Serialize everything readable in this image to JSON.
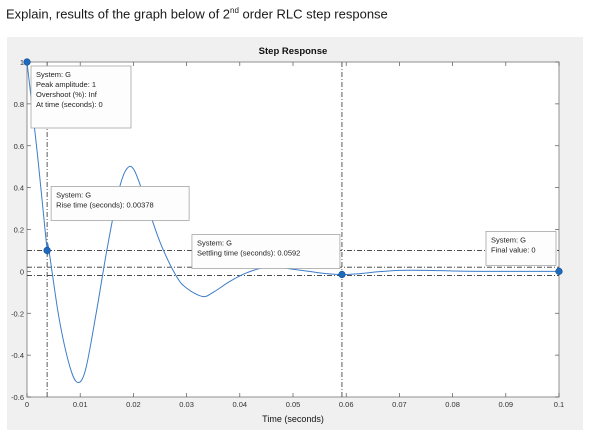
{
  "question": {
    "prefix": "Explain, results of the graph below of 2",
    "superscript": "nd",
    "suffix": " order RLC step response"
  },
  "colors": {
    "response": "#3c7dc9",
    "markers": "#1e6bbd",
    "guides": "#333333",
    "figure_bg": "#f0f0f0",
    "axes_bg": "#ffffff"
  },
  "chart_data": {
    "type": "line",
    "title": "Step Response",
    "xlabel": "Time (seconds)",
    "ylabel": "",
    "xlim": [
      0,
      0.1
    ],
    "ylim": [
      -0.6,
      1.0
    ],
    "xticks": [
      0,
      0.01,
      0.02,
      0.03,
      0.04,
      0.05,
      0.06,
      0.07,
      0.08,
      0.09,
      0.1
    ],
    "xtick_labels": [
      "0",
      "0.01",
      "0.02",
      "0.03",
      "0.04",
      "0.05",
      "0.06",
      "0.07",
      "0.08",
      "0.09",
      "0.1"
    ],
    "yticks": [
      1,
      0.8,
      0.6,
      0.4,
      0.2,
      0,
      -0.2,
      -0.4,
      -0.6
    ],
    "ytick_labels": [
      "1",
      "0.8",
      "0.6",
      "0.4",
      "0.2",
      "0",
      "-0.2",
      "-0.4",
      "-0.6"
    ],
    "grid": false,
    "series": [
      {
        "x": [
          0,
          0.002,
          0.004,
          0.00378,
          0.006,
          0.008,
          0.0095,
          0.011,
          0.013,
          0.015,
          0.017,
          0.0185,
          0.02,
          0.022,
          0.025,
          0.028,
          0.03,
          0.033,
          0.035,
          0.038,
          0.041,
          0.044,
          0.047,
          0.05,
          0.053,
          0.056,
          0.0592,
          0.062,
          0.066,
          0.07,
          0.075,
          0.08,
          0.085,
          0.09,
          0.095,
          0.1
        ],
        "y": [
          1.0,
          0.55,
          0.12,
          0.1,
          -0.22,
          -0.45,
          -0.53,
          -0.47,
          -0.2,
          0.1,
          0.36,
          0.48,
          0.49,
          0.36,
          0.14,
          -0.02,
          -0.08,
          -0.12,
          -0.1,
          -0.05,
          -0.01,
          0.015,
          0.02,
          0.01,
          0.0,
          -0.01,
          -0.015,
          -0.012,
          -0.002,
          0.005,
          0.005,
          0.002,
          0.0,
          0.0,
          0.0,
          0.0
        ]
      }
    ],
    "reference_lines": [
      {
        "kind": "horizontal",
        "y": 0.1,
        "style": "dash-dot"
      },
      {
        "kind": "horizontal",
        "y": 0.02,
        "style": "dash-dot"
      },
      {
        "kind": "horizontal",
        "y": -0.02,
        "style": "dash-dot"
      },
      {
        "kind": "vertical",
        "x": 0.00378,
        "style": "dash-dot"
      },
      {
        "kind": "vertical",
        "x": 0.0592,
        "style": "dash-dot"
      }
    ],
    "annotations": [
      {
        "name": "peak",
        "x": 0,
        "y": 1.0,
        "lines": [
          "System: G",
          "Peak amplitude: 1",
          "Overshoot (%): Inf",
          "At time (seconds): 0"
        ]
      },
      {
        "name": "rise",
        "x": 0.00378,
        "y": 0.1,
        "lines": [
          "System: G",
          "Rise time (seconds): 0.00378"
        ]
      },
      {
        "name": "settling",
        "x": 0.0592,
        "y": -0.015,
        "lines": [
          "System: G",
          "Settling time (seconds): 0.0592"
        ]
      },
      {
        "name": "final",
        "x": 0.1,
        "y": 0.0,
        "lines": [
          "System: G",
          "Final value: 0"
        ]
      }
    ]
  }
}
